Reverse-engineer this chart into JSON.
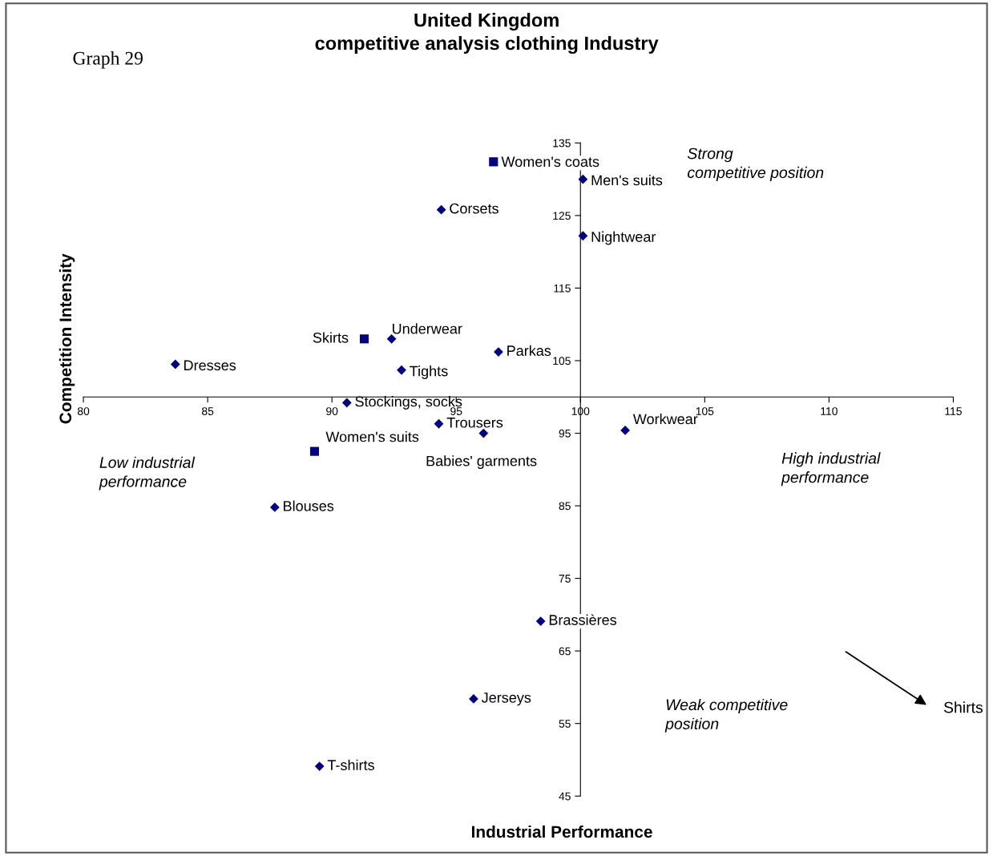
{
  "chart_data": {
    "type": "scatter",
    "title": "United Kingdom\ncompetitive analysis clothing Industry",
    "xlabel": "Industrial Performance",
    "ylabel": "Competition Intensity",
    "xlim": [
      80,
      115
    ],
    "ylim": [
      45,
      135
    ],
    "xticks": [
      80,
      85,
      90,
      95,
      100,
      105,
      110,
      115
    ],
    "yticks": [
      45,
      55,
      65,
      75,
      85,
      95,
      105,
      115,
      125,
      135
    ],
    "grid": false,
    "legend": false,
    "series": [
      {
        "color": "#000080",
        "marker": "diamond",
        "x": [
          100.1,
          94.4,
          100.1,
          92.4,
          96.7,
          83.7,
          92.8,
          90.6,
          94.3,
          96.1,
          101.8,
          87.7,
          98.4,
          95.7,
          89.5
        ],
        "values": [
          130,
          125.8,
          122.2,
          108,
          106.2,
          104.5,
          103.7,
          99.2,
          96.3,
          95,
          95.4,
          84.8,
          69.1,
          58.4,
          49.1
        ]
      },
      {
        "color": "#000080",
        "marker": "square",
        "x": [
          96.5,
          91.3,
          89.3
        ],
        "values": [
          132.4,
          108,
          92.5
        ]
      }
    ],
    "annotations": [
      {
        "text": "Men's suits",
        "x": 100.1,
        "y": 130
      },
      {
        "text": "Corsets",
        "x": 94.4,
        "y": 125.8
      },
      {
        "text": "Nightwear",
        "x": 100.1,
        "y": 122.2
      },
      {
        "text": "Underwear",
        "x": 92.4,
        "y": 108
      },
      {
        "text": "Parkas",
        "x": 96.7,
        "y": 106.2
      },
      {
        "text": "Dresses",
        "x": 83.7,
        "y": 104.5
      },
      {
        "text": "Tights",
        "x": 92.8,
        "y": 103.7
      },
      {
        "text": "Stockings, socks",
        "x": 90.6,
        "y": 99.2
      },
      {
        "text": "Trousers",
        "x": 94.3,
        "y": 96.3
      },
      {
        "text": "Babies' garments",
        "x": 96.1,
        "y": 95
      },
      {
        "text": "Workwear",
        "x": 101.8,
        "y": 95.4
      },
      {
        "text": "Blouses",
        "x": 87.7,
        "y": 84.8
      },
      {
        "text": "Brassières",
        "x": 98.4,
        "y": 69.1
      },
      {
        "text": "Jerseys",
        "x": 95.7,
        "y": 58.4
      },
      {
        "text": "T-shirts",
        "x": 89.5,
        "y": 49.1
      },
      {
        "text": "Women's coats",
        "x": 96.5,
        "y": 132.4
      },
      {
        "text": "Skirts",
        "x": 91.3,
        "y": 108
      },
      {
        "text": "Women's suits",
        "x": 89.3,
        "y": 92.5
      },
      "Graph 29",
      "Strong\ncompetitive position",
      "Low industrial\nperformance",
      "High industrial\nperformance",
      "Weak competitive\nposition",
      "Shirts"
    ]
  }
}
